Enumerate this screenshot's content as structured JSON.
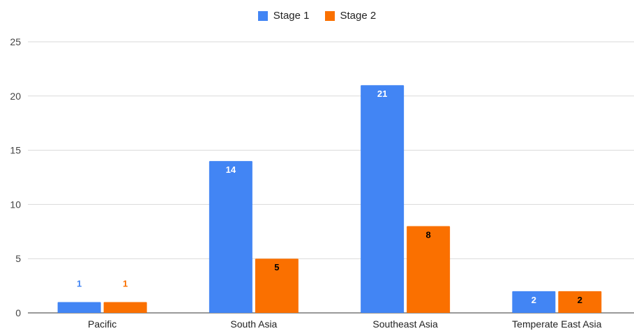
{
  "chart_data": {
    "type": "bar",
    "categories": [
      "Pacific",
      "South Asia",
      "Southeast Asia",
      "Temperate East Asia"
    ],
    "series": [
      {
        "name": "Stage 1",
        "values": [
          1,
          14,
          21,
          2
        ],
        "color": "#4285f4",
        "label_color_inside": "#ffffff",
        "label_color_outside": "#4285f4"
      },
      {
        "name": "Stage 2",
        "values": [
          1,
          5,
          8,
          2
        ],
        "color": "#fa7000",
        "label_color_inside": "#000000",
        "label_color_outside": "#fa7000"
      }
    ],
    "yticks": [
      0,
      5,
      10,
      15,
      20,
      25
    ],
    "ylim": [
      0,
      25
    ],
    "grid": true,
    "legend_position": "top-center"
  }
}
